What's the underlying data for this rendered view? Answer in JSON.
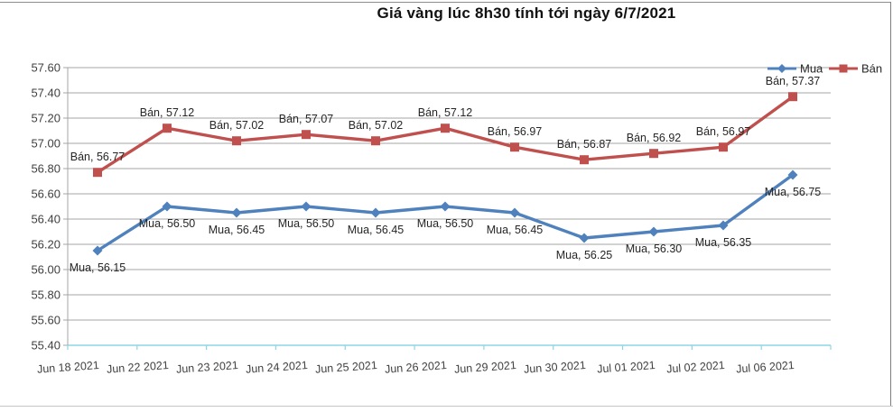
{
  "title": "Giá vàng lúc 8h30 tính tới ngày 6/7/2021",
  "window": {
    "border_top_color": "#8c8c8c",
    "border_right_color": "#7f7f7f",
    "border_bottom_color": "#c6c6c6"
  },
  "chart_data": {
    "type": "line",
    "title": "Giá vàng lúc 8h30 tính tới ngày 6/7/2021",
    "categories": [
      "Jun 18 2021",
      "Jun 22 2021",
      "Jun 23 2021",
      "Jun 24 2021",
      "Jun 25 2021",
      "Jun 26 2021",
      "Jun 29 2021",
      "Jun 30 2021",
      "Jul 01 2021",
      "Jul 02 2021",
      "Jul 06 2021"
    ],
    "series": [
      {
        "name": "Mua",
        "color": "#4F81BD",
        "marker": "diamond",
        "label_position": "below",
        "values": [
          56.15,
          56.5,
          56.45,
          56.5,
          56.45,
          56.5,
          56.45,
          56.25,
          56.3,
          56.35,
          56.75
        ]
      },
      {
        "name": "Bán",
        "color": "#C0504D",
        "marker": "square",
        "label_position": "above",
        "values": [
          56.77,
          57.12,
          57.02,
          57.07,
          57.02,
          57.12,
          56.97,
          56.87,
          56.92,
          56.97,
          57.37
        ]
      }
    ],
    "ylim": [
      55.4,
      57.6
    ],
    "ytick_step": 0.2,
    "grid": true,
    "legend_position": "top-right",
    "data_labels": true,
    "data_label_format": "{series}, {value}",
    "axis": {
      "y_axis_color": "#a6a6a6",
      "gridline_color": "#a6a6a6",
      "x_axis_color": "#8ed5e6",
      "tick_label_color": "#3f3f3f",
      "data_label_color": "#262626",
      "legend_text_color": "#262626"
    }
  }
}
